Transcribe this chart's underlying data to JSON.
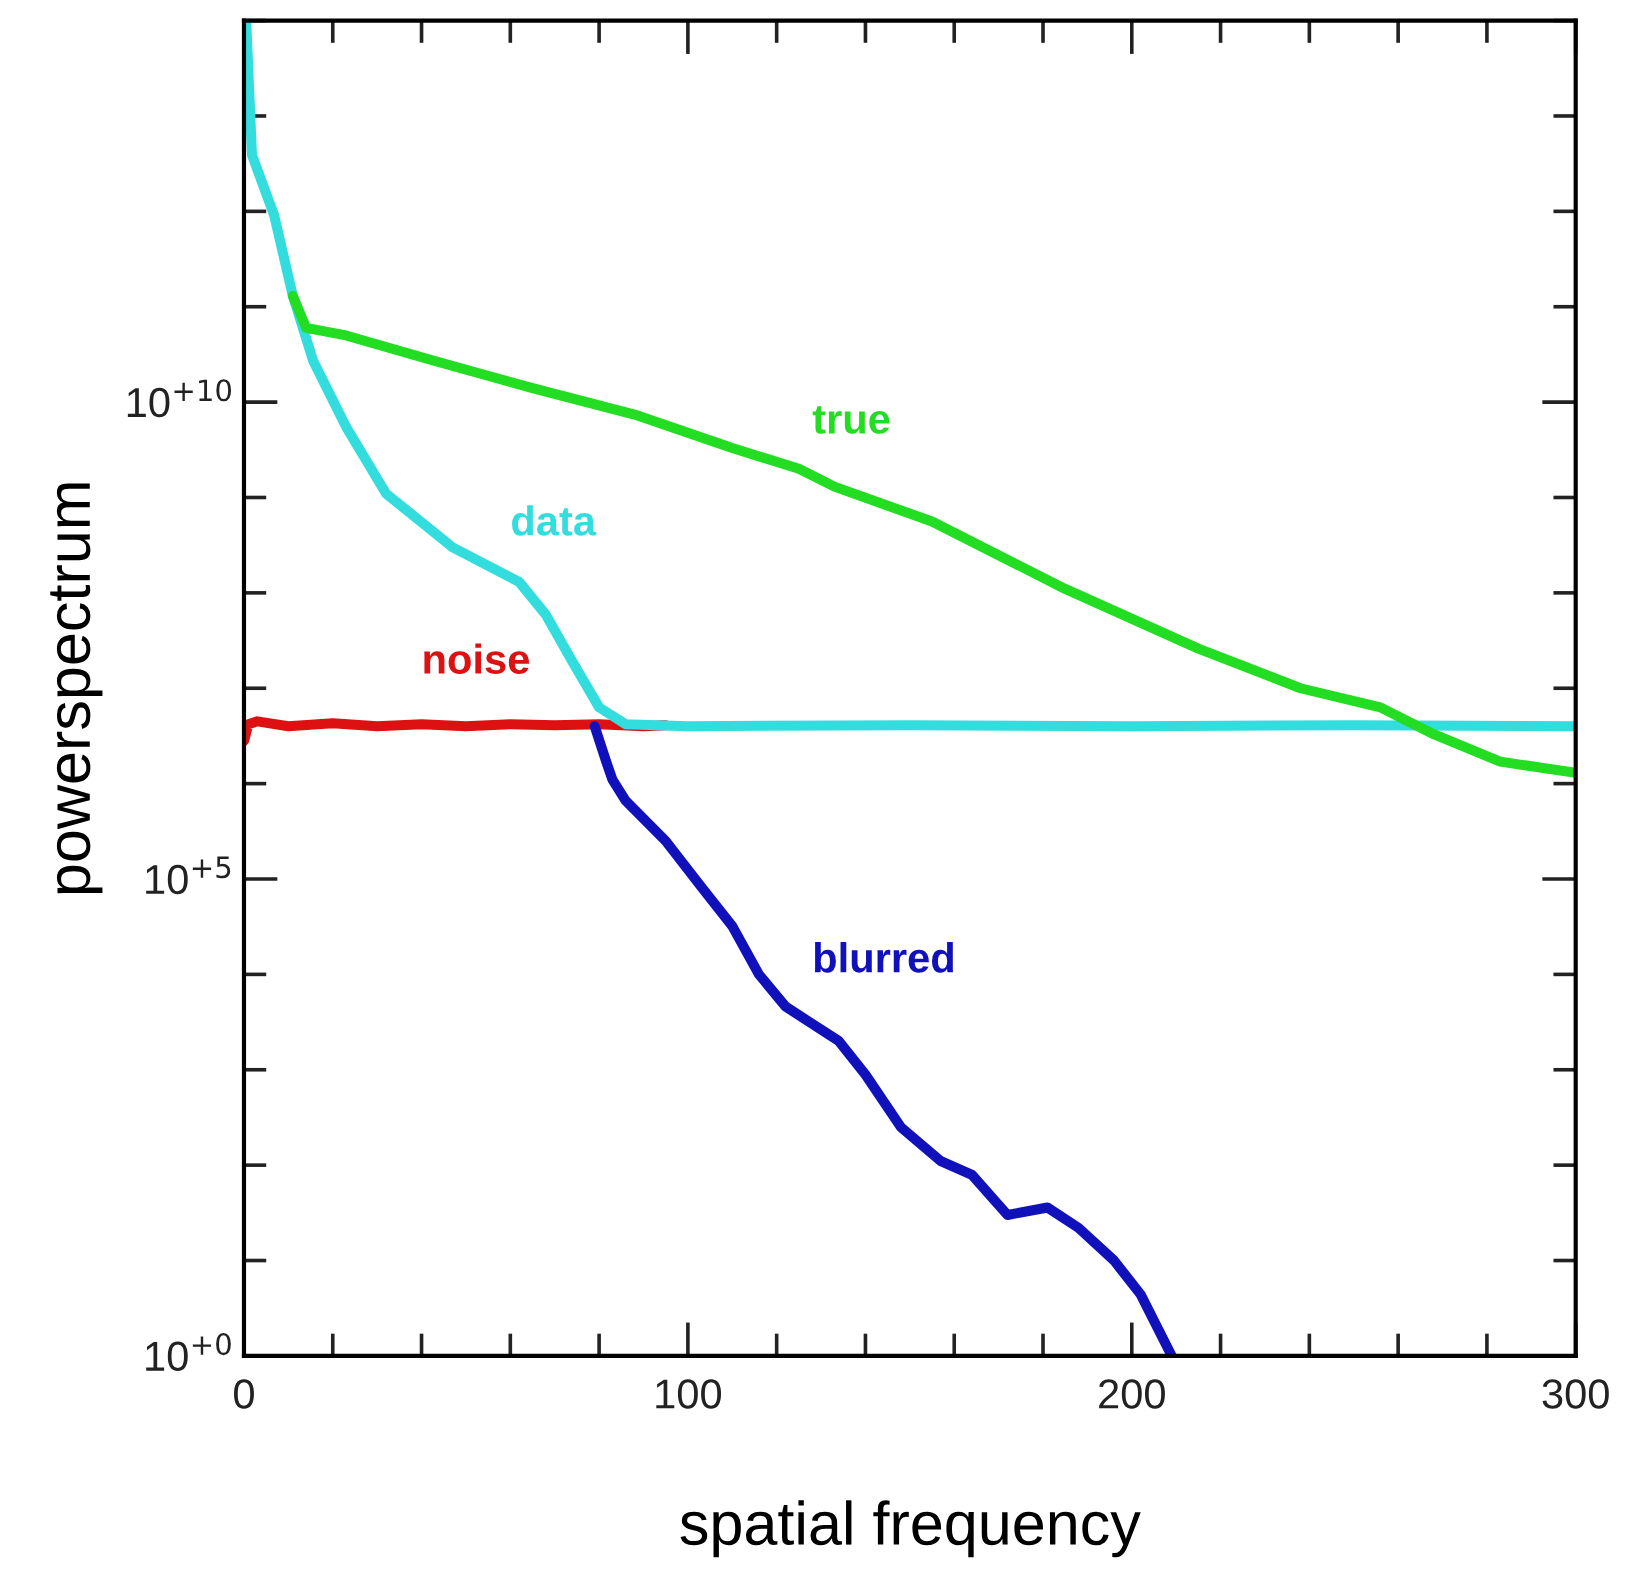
{
  "chart_data": {
    "type": "line",
    "xlabel": "spatial frequency",
    "ylabel": "powerspectrum",
    "log": "y",
    "xlim": [
      0,
      300
    ],
    "ylim": [
      1,
      100000000000000.0
    ],
    "xticks": [
      0,
      {
        "value": 20,
        "label": null
      },
      {
        "value": 40,
        "label": null
      },
      {
        "value": 60,
        "label": null
      },
      {
        "value": 80,
        "label": null
      },
      100,
      {
        "value": 120,
        "label": null
      },
      {
        "value": 140,
        "label": null
      },
      {
        "value": 160,
        "label": null
      },
      {
        "value": 180,
        "label": null
      },
      200,
      {
        "value": 220,
        "label": null
      },
      {
        "value": 240,
        "label": null
      },
      {
        "value": 260,
        "label": null
      },
      {
        "value": 280,
        "label": null
      },
      300
    ],
    "yticks": [
      {
        "value": 1,
        "label": "10$^{+0}$"
      },
      {
        "value": 10,
        "label": null
      },
      {
        "value": 100,
        "label": null
      },
      {
        "value": 1000,
        "label": null
      },
      {
        "value": 10000,
        "label": null
      },
      {
        "value": 100000,
        "label": "10$^{+5}$"
      },
      {
        "value": 1000000,
        "label": null
      },
      {
        "value": 10000000,
        "label": null
      },
      {
        "value": 100000000,
        "label": null
      },
      {
        "value": 1000000000,
        "label": null
      },
      {
        "value": 10000000000,
        "label": "10$^{+10}$"
      },
      {
        "value": 100000000000,
        "label": null
      },
      {
        "value": 1000000000000,
        "label": null
      },
      {
        "value": 10000000000000,
        "label": null
      },
      {
        "value": 100000000000000,
        "label": null
      }
    ],
    "grid": false,
    "legend": false,
    "marker": "none",
    "line_style": "solid",
    "series": [
      {
        "name": "noise",
        "color": "#dd1111",
        "x": [
          0,
          1,
          3,
          10,
          20,
          30,
          40,
          50,
          60,
          70,
          80,
          90,
          95
        ],
        "values": [
          2800000.0,
          4200000.0,
          4500000.0,
          4000000.0,
          4300000.0,
          4000000.0,
          4200000.0,
          4000000.0,
          4200000.0,
          4100000.0,
          4200000.0,
          4000000.0,
          4100000.0
        ]
      },
      {
        "name": "blurred",
        "color": "#1111bb",
        "x": [
          79,
          81.6,
          83,
          86,
          95,
          103,
          110,
          116,
          122,
          134,
          140,
          148,
          157,
          164,
          172,
          181,
          188,
          196,
          202,
          209
        ],
        "values": [
          4000000.0,
          1700000.0,
          1100000.0,
          660000.0,
          250000.0,
          83000.0,
          32000.0,
          10000.0,
          4600.0,
          2000.0,
          890,
          250,
          110,
          79,
          30,
          36,
          22,
          10,
          4.4,
          1
        ]
      },
      {
        "name": "data",
        "color": "#33dddd",
        "x": [
          0.5,
          1.8,
          6.8,
          11,
          15.6,
          23,
          32,
          47,
          62,
          68,
          74,
          80,
          86,
          100,
          150,
          200,
          250,
          300
        ],
        "values": [
          100000000000000.0,
          3900000000000.0,
          910000000000.0,
          130000000000.0,
          27000000000.0,
          5500000000.0,
          1100000000.0,
          300000000.0,
          130000000.0,
          59000000.0,
          19000000.0,
          6300000.0,
          4200000.0,
          4000000.0,
          4100000.0,
          4000000.0,
          4100000.0,
          4000000.0
        ]
      },
      {
        "name": "true",
        "color": "#22dd22",
        "x": [
          11,
          14,
          23,
          43,
          65,
          88,
          110,
          125,
          133,
          155,
          185,
          215,
          238,
          256,
          268,
          283,
          300
        ],
        "values": [
          130000000000.0,
          60000000000.0,
          50000000000.0,
          27000000000.0,
          14000000000.0,
          7400000000.0,
          3300000000.0,
          2000000000.0,
          1300000000.0,
          560000000.0,
          110000000.0,
          26000000.0,
          10000000.0,
          6300000.0,
          3300000.0,
          1700000.0,
          1300000.0
        ]
      }
    ]
  }
}
